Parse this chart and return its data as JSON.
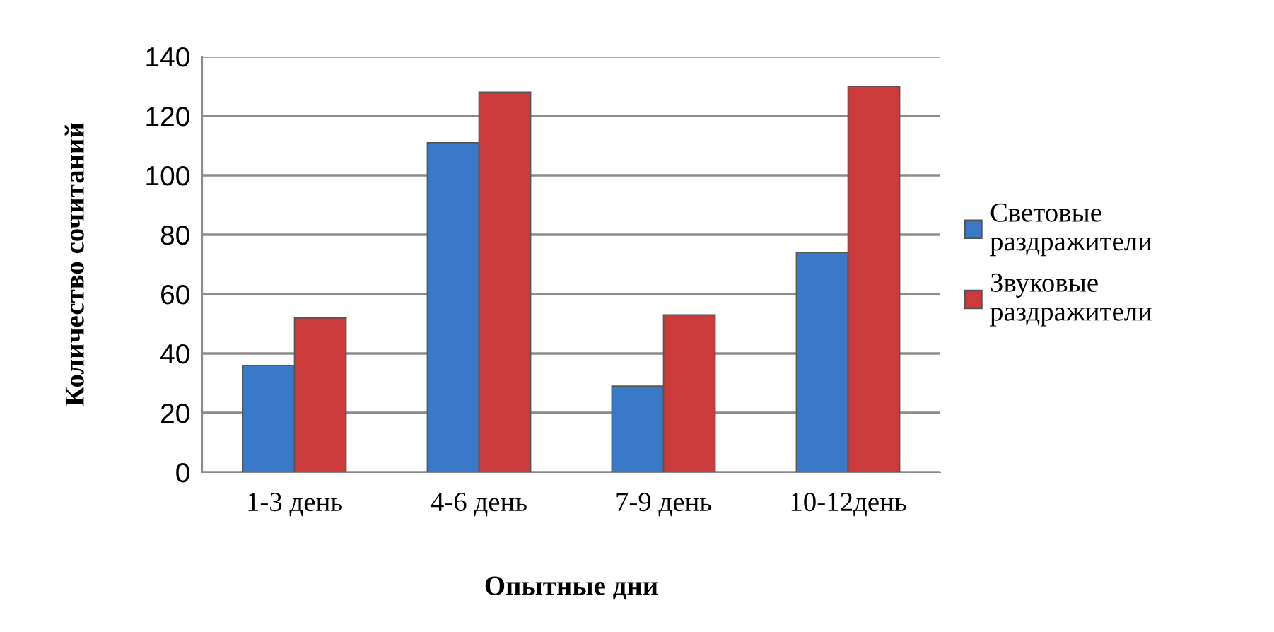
{
  "chart_data": {
    "type": "bar",
    "xlabel": "Опытные дни",
    "ylabel": "Количество сочитаний",
    "categories": [
      "1-3 день",
      "4-6 день",
      "7-9 день",
      "10-12день"
    ],
    "series": [
      {
        "name": "Световые раздражители",
        "color": "#3a78c8",
        "values": [
          36,
          111,
          29,
          74
        ]
      },
      {
        "name": "Звуковые раздражители",
        "color": "#cc3b3b",
        "values": [
          52,
          128,
          53,
          130
        ]
      }
    ],
    "ylim": [
      0,
      140
    ],
    "yticks": [
      0,
      20,
      40,
      60,
      80,
      100,
      120,
      140
    ],
    "grid": "y",
    "legend": "right"
  }
}
